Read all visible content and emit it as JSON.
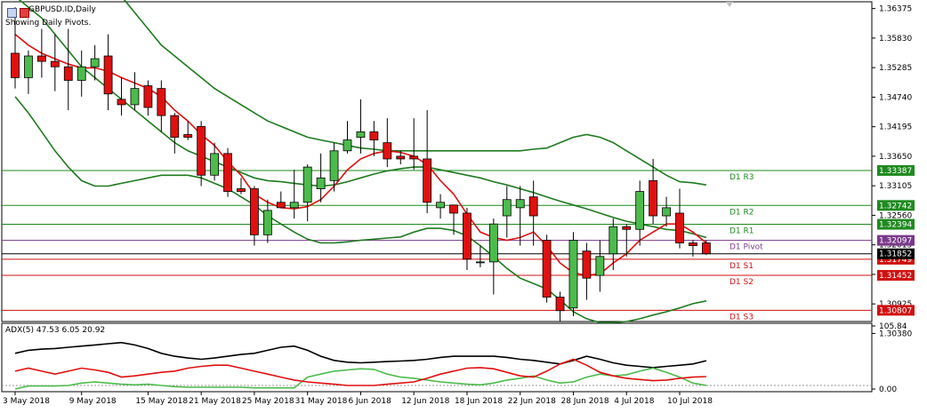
{
  "header": {
    "symbol_title": "GBPUSD.ID,Daily",
    "subtitle": "Showing Daily Pivots."
  },
  "indicator_header": "ADX(5) 47.53 6.05 20.92",
  "colors": {
    "bull": "#4cbb4c",
    "bear": "#e01010",
    "bollinger": "#1f7a1f",
    "ma": "#e01010",
    "pivot_res": "#1f8a1f",
    "pivot_pp": "#7a3a8a",
    "pivot_sup": "#d01010",
    "adx": "#000000",
    "di_plus": "#4cbb4c",
    "di_minus": "#e01010"
  },
  "chart_data": {
    "type": "candlestick",
    "title": "GBPUSD.ID,Daily",
    "ylim": [
      1.306,
      1.365
    ],
    "y_ticks": [
      "1.36375",
      "1.35830",
      "1.35285",
      "1.34740",
      "1.34195",
      "1.33650",
      "1.33105",
      "1.32560",
      "1.32015",
      "1.31470",
      "1.30925",
      "1.30380"
    ],
    "x_ticks": [
      {
        "i": 0,
        "label": "3 May 2018"
      },
      {
        "i": 5,
        "label": "9 May 2018"
      },
      {
        "i": 10,
        "label": "15 May 2018"
      },
      {
        "i": 14,
        "label": "21 May 2018"
      },
      {
        "i": 18,
        "label": "25 May 2018"
      },
      {
        "i": 22,
        "label": "31 May 2018"
      },
      {
        "i": 26,
        "label": "6 Jun 2018"
      },
      {
        "i": 30,
        "label": "12 Jun 2018"
      },
      {
        "i": 34,
        "label": "18 Jun 2018"
      },
      {
        "i": 38,
        "label": "22 Jun 2018"
      },
      {
        "i": 42,
        "label": "28 Jun 2018"
      },
      {
        "i": 46,
        "label": "4 Jul 2018"
      },
      {
        "i": 50,
        "label": "10 Jul 2018"
      }
    ],
    "candles": [
      {
        "o": 1.3555,
        "h": 1.364,
        "l": 1.349,
        "c": 1.351
      },
      {
        "o": 1.351,
        "h": 1.356,
        "l": 1.348,
        "c": 1.355
      },
      {
        "o": 1.355,
        "h": 1.36,
        "l": 1.351,
        "c": 1.354
      },
      {
        "o": 1.354,
        "h": 1.359,
        "l": 1.3485,
        "c": 1.353
      },
      {
        "o": 1.353,
        "h": 1.36,
        "l": 1.345,
        "c": 1.3505
      },
      {
        "o": 1.3505,
        "h": 1.356,
        "l": 1.3475,
        "c": 1.353
      },
      {
        "o": 1.353,
        "h": 1.357,
        "l": 1.3505,
        "c": 1.3545
      },
      {
        "o": 1.355,
        "h": 1.359,
        "l": 1.345,
        "c": 1.348
      },
      {
        "o": 1.347,
        "h": 1.351,
        "l": 1.344,
        "c": 1.346
      },
      {
        "o": 1.346,
        "h": 1.352,
        "l": 1.345,
        "c": 1.349
      },
      {
        "o": 1.3495,
        "h": 1.3505,
        "l": 1.344,
        "c": 1.3455
      },
      {
        "o": 1.349,
        "h": 1.3505,
        "l": 1.341,
        "c": 1.344
      },
      {
        "o": 1.344,
        "h": 1.3445,
        "l": 1.337,
        "c": 1.34
      },
      {
        "o": 1.3405,
        "h": 1.343,
        "l": 1.3395,
        "c": 1.34
      },
      {
        "o": 1.342,
        "h": 1.343,
        "l": 1.331,
        "c": 1.333
      },
      {
        "o": 1.333,
        "h": 1.339,
        "l": 1.332,
        "c": 1.337
      },
      {
        "o": 1.337,
        "h": 1.338,
        "l": 1.329,
        "c": 1.33
      },
      {
        "o": 1.3305,
        "h": 1.3325,
        "l": 1.3295,
        "c": 1.33
      },
      {
        "o": 1.3305,
        "h": 1.331,
        "l": 1.32,
        "c": 1.322
      },
      {
        "o": 1.322,
        "h": 1.3285,
        "l": 1.3205,
        "c": 1.3265
      },
      {
        "o": 1.328,
        "h": 1.33,
        "l": 1.327,
        "c": 1.327
      },
      {
        "o": 1.327,
        "h": 1.334,
        "l": 1.325,
        "c": 1.328
      },
      {
        "o": 1.328,
        "h": 1.335,
        "l": 1.3245,
        "c": 1.3345
      },
      {
        "o": 1.3305,
        "h": 1.337,
        "l": 1.328,
        "c": 1.3325
      },
      {
        "o": 1.332,
        "h": 1.339,
        "l": 1.33,
        "c": 1.3375
      },
      {
        "o": 1.3375,
        "h": 1.343,
        "l": 1.337,
        "c": 1.3395
      },
      {
        "o": 1.34,
        "h": 1.347,
        "l": 1.337,
        "c": 1.341
      },
      {
        "o": 1.341,
        "h": 1.343,
        "l": 1.3365,
        "c": 1.3395
      },
      {
        "o": 1.339,
        "h": 1.3435,
        "l": 1.3345,
        "c": 1.336
      },
      {
        "o": 1.3365,
        "h": 1.3375,
        "l": 1.335,
        "c": 1.336
      },
      {
        "o": 1.3365,
        "h": 1.3435,
        "l": 1.334,
        "c": 1.336
      },
      {
        "o": 1.336,
        "h": 1.345,
        "l": 1.326,
        "c": 1.328
      },
      {
        "o": 1.327,
        "h": 1.3295,
        "l": 1.325,
        "c": 1.328
      },
      {
        "o": 1.3275,
        "h": 1.3275,
        "l": 1.322,
        "c": 1.326
      },
      {
        "o": 1.326,
        "h": 1.327,
        "l": 1.3155,
        "c": 1.3175
      },
      {
        "o": 1.317,
        "h": 1.32,
        "l": 1.316,
        "c": 1.317
      },
      {
        "o": 1.317,
        "h": 1.325,
        "l": 1.311,
        "c": 1.324
      },
      {
        "o": 1.3255,
        "h": 1.331,
        "l": 1.3215,
        "c": 1.3285
      },
      {
        "o": 1.327,
        "h": 1.331,
        "l": 1.32,
        "c": 1.3285
      },
      {
        "o": 1.329,
        "h": 1.332,
        "l": 1.32,
        "c": 1.3255
      },
      {
        "o": 1.321,
        "h": 1.322,
        "l": 1.3095,
        "c": 1.3105
      },
      {
        "o": 1.3105,
        "h": 1.3115,
        "l": 1.306,
        "c": 1.308
      },
      {
        "o": 1.3085,
        "h": 1.3225,
        "l": 1.307,
        "c": 1.321
      },
      {
        "o": 1.319,
        "h": 1.3205,
        "l": 1.31,
        "c": 1.314
      },
      {
        "o": 1.3145,
        "h": 1.321,
        "l": 1.3115,
        "c": 1.318
      },
      {
        "o": 1.3185,
        "h": 1.325,
        "l": 1.3155,
        "c": 1.3235
      },
      {
        "o": 1.3235,
        "h": 1.324,
        "l": 1.318,
        "c": 1.323
      },
      {
        "o": 1.323,
        "h": 1.332,
        "l": 1.32,
        "c": 1.33
      },
      {
        "o": 1.332,
        "h": 1.336,
        "l": 1.324,
        "c": 1.3255
      },
      {
        "o": 1.3255,
        "h": 1.329,
        "l": 1.3235,
        "c": 1.327
      },
      {
        "o": 1.326,
        "h": 1.3305,
        "l": 1.3195,
        "c": 1.3205
      },
      {
        "o": 1.3205,
        "h": 1.321,
        "l": 1.318,
        "c": 1.32
      },
      {
        "o": 1.3205,
        "h": 1.321,
        "l": 1.3183,
        "c": 1.3185
      }
    ],
    "bollinger_upper": [
      1.3825,
      1.381,
      1.379,
      1.377,
      1.3745,
      1.372,
      1.37,
      1.368,
      1.366,
      1.363,
      1.36,
      1.357,
      1.355,
      1.353,
      1.351,
      1.349,
      1.3475,
      1.346,
      1.3445,
      1.343,
      1.342,
      1.341,
      1.34,
      1.3395,
      1.339,
      1.3385,
      1.338,
      1.3378,
      1.3375,
      1.3375,
      1.3375,
      1.3375,
      1.3375,
      1.3375,
      1.3375,
      1.3375,
      1.3375,
      1.3375,
      1.3375,
      1.3378,
      1.338,
      1.339,
      1.34,
      1.3405,
      1.34,
      1.339,
      1.3375,
      1.336,
      1.3345,
      1.333,
      1.3318,
      1.3316,
      1.3312
    ],
    "bollinger_mid": [
      1.366,
      1.364,
      1.362,
      1.359,
      1.356,
      1.353,
      1.351,
      1.349,
      1.347,
      1.345,
      1.343,
      1.341,
      1.339,
      1.3375,
      1.3365,
      1.3355,
      1.3345,
      1.3335,
      1.3325,
      1.332,
      1.3318,
      1.3315,
      1.3312,
      1.331,
      1.3312,
      1.3318,
      1.3325,
      1.3332,
      1.3338,
      1.3342,
      1.3345,
      1.3345,
      1.334,
      1.3335,
      1.333,
      1.3325,
      1.3318,
      1.3312,
      1.3305,
      1.3298,
      1.329,
      1.3282,
      1.3275,
      1.3268,
      1.326,
      1.3252,
      1.3245,
      1.324,
      1.3235,
      1.323,
      1.3228,
      1.3222,
      1.3215
    ],
    "bollinger_lower": [
      1.3475,
      1.3445,
      1.341,
      1.3375,
      1.3345,
      1.332,
      1.331,
      1.331,
      1.3315,
      1.332,
      1.3325,
      1.333,
      1.333,
      1.333,
      1.3325,
      1.3315,
      1.3305,
      1.329,
      1.3275,
      1.3255,
      1.324,
      1.3225,
      1.3212,
      1.3205,
      1.3205,
      1.3207,
      1.321,
      1.3212,
      1.3214,
      1.3216,
      1.3225,
      1.3232,
      1.3232,
      1.3228,
      1.3218,
      1.32,
      1.318,
      1.3158,
      1.314,
      1.313,
      1.312,
      1.31,
      1.3078,
      1.3065,
      1.3058,
      1.3058,
      1.306,
      1.3065,
      1.3072,
      1.3078,
      1.3085,
      1.3093,
      1.3098
    ],
    "moving_average": [
      1.359,
      1.357,
      1.3555,
      1.3545,
      1.3535,
      1.3528,
      1.3528,
      1.3522,
      1.351,
      1.35,
      1.349,
      1.3475,
      1.345,
      1.343,
      1.3405,
      1.3385,
      1.3355,
      1.333,
      1.3295,
      1.328,
      1.327,
      1.3268,
      1.3272,
      1.3285,
      1.331,
      1.334,
      1.336,
      1.337,
      1.3375,
      1.3372,
      1.3365,
      1.335,
      1.332,
      1.3295,
      1.3258,
      1.3225,
      1.3215,
      1.321,
      1.3215,
      1.3225,
      1.32,
      1.3168,
      1.315,
      1.3145,
      1.3148,
      1.3168,
      1.3185,
      1.321,
      1.3225,
      1.324,
      1.324,
      1.3225,
      1.3205
    ],
    "pivot_levels": [
      {
        "label": "D1  R3",
        "value": 1.33387,
        "price_tag": "1.33387",
        "kind": "res"
      },
      {
        "label": "D1  R2",
        "value": 1.32742,
        "price_tag": "1.32742",
        "kind": "res"
      },
      {
        "label": "D1  R1",
        "value": 1.32394,
        "price_tag": "1.32394",
        "kind": "res"
      },
      {
        "label": "D1  Pivot",
        "value": 1.32097,
        "price_tag": "1.32097",
        "kind": "pp"
      },
      {
        "label": "D1  S1",
        "value": 1.31749,
        "price_tag": "1.31749",
        "kind": "sup"
      },
      {
        "label": "D1  S2",
        "value": 1.31452,
        "price_tag": "1.31452",
        "kind": "sup"
      },
      {
        "label": "D1  S3",
        "value": 1.30807,
        "price_tag": "1.30807",
        "kind": "sup"
      }
    ],
    "current_price": {
      "value": 1.3185,
      "price_tag": "1.31852"
    },
    "indicator": {
      "name": "ADX(5)",
      "ylim": [
        0,
        105.84
      ],
      "y_ticks": [
        "105.84",
        "0.00"
      ],
      "adx": [
        60,
        65,
        67,
        68,
        70,
        72,
        74,
        76,
        78,
        74,
        68,
        60,
        55,
        52,
        50,
        52,
        55,
        58,
        60,
        65,
        70,
        72,
        65,
        55,
        48,
        45,
        44,
        45,
        46,
        47,
        48,
        50,
        53,
        55,
        55,
        55,
        55,
        53,
        50,
        48,
        45,
        42,
        48,
        55,
        50,
        44,
        40,
        38,
        36,
        38,
        40,
        42,
        47.53
      ],
      "di_plus": [
        0,
        5,
        5,
        5,
        6,
        10,
        12,
        10,
        8,
        7,
        8,
        6,
        4,
        3,
        3,
        3,
        3,
        3,
        2,
        2,
        2,
        2,
        20,
        25,
        30,
        32,
        34,
        33,
        25,
        20,
        18,
        15,
        12,
        10,
        8,
        7,
        10,
        15,
        18,
        22,
        15,
        10,
        12,
        20,
        25,
        22,
        24,
        30,
        35,
        28,
        20,
        10,
        6.05
      ],
      "di_minus": [
        30,
        35,
        30,
        25,
        30,
        35,
        32,
        28,
        20,
        22,
        25,
        28,
        30,
        35,
        38,
        40,
        40,
        35,
        30,
        25,
        20,
        15,
        12,
        10,
        8,
        6,
        6,
        6,
        8,
        10,
        12,
        18,
        25,
        30,
        35,
        36,
        34,
        28,
        22,
        20,
        30,
        42,
        50,
        40,
        28,
        22,
        18,
        16,
        14,
        15,
        18,
        20,
        20.92
      ]
    }
  }
}
